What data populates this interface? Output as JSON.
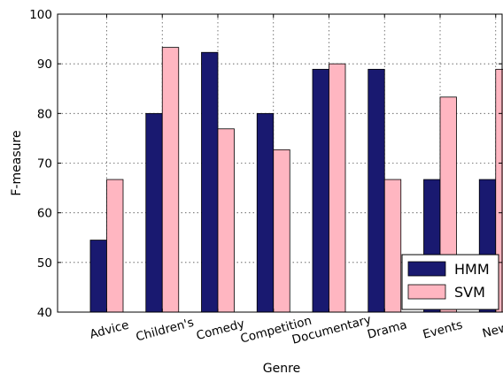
{
  "chart_data": {
    "type": "bar",
    "title": "",
    "xlabel": "Genre",
    "ylabel": "F-measure",
    "ylim": [
      40,
      100
    ],
    "yticks": [
      40,
      50,
      60,
      70,
      80,
      90,
      100
    ],
    "grid": true,
    "legend_position": "bottom-right",
    "categories": [
      "Advice",
      "Children's",
      "Comedy",
      "Competition",
      "Documentary",
      "Drama",
      "Events",
      "News"
    ],
    "series": [
      {
        "name": "HMM",
        "color": "#191970",
        "values": [
          54.5,
          80,
          92.3,
          80,
          88.9,
          88.9,
          66.7,
          66.7
        ]
      },
      {
        "name": "SVM",
        "color": "#ffb6c1",
        "values": [
          66.7,
          93.3,
          76.9,
          72.7,
          90.0,
          66.7,
          83.3,
          88.9
        ]
      }
    ]
  }
}
